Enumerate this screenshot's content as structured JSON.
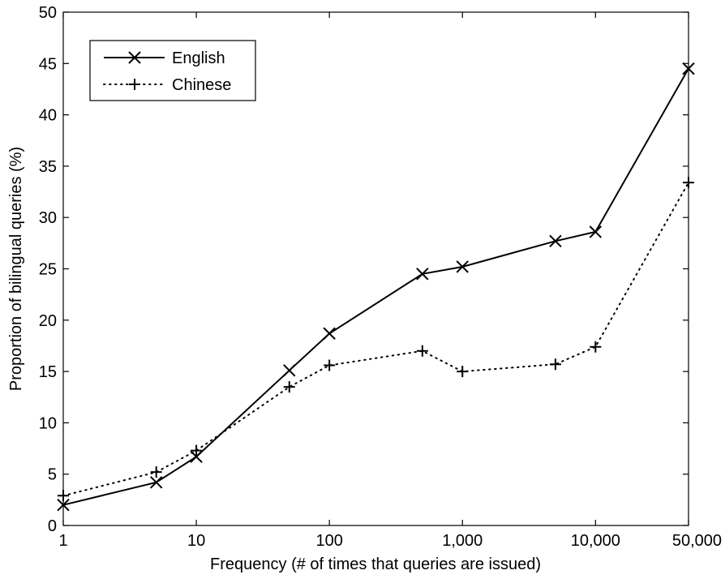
{
  "chart_data": {
    "type": "line",
    "xscale": "log",
    "xlim": [
      1,
      50000
    ],
    "ylim": [
      0,
      50
    ],
    "xticks": [
      1,
      10,
      100,
      1000,
      10000,
      50000
    ],
    "xtick_labels": [
      "1",
      "10",
      "100",
      "1,000",
      "10,000",
      "50,000"
    ],
    "yticks": [
      0,
      5,
      10,
      15,
      20,
      25,
      30,
      35,
      40,
      45,
      50
    ],
    "ytick_labels": [
      "0",
      "5",
      "10",
      "15",
      "20",
      "25",
      "30",
      "35",
      "40",
      "45",
      "50"
    ],
    "xlabel": "Frequency (# of times that queries are issued)",
    "ylabel": "Proportion of bilingual queries (%)",
    "grid": false,
    "legend": "top-left",
    "x": [
      1,
      5,
      10,
      50,
      100,
      500,
      1000,
      5000,
      10000,
      50000
    ],
    "series": [
      {
        "name": "English",
        "style": "solid",
        "marker": "x",
        "color": "#000000",
        "values": [
          2.0,
          4.2,
          6.7,
          15.1,
          18.7,
          24.5,
          25.2,
          27.7,
          28.6,
          44.5
        ]
      },
      {
        "name": "Chinese",
        "style": "dotted",
        "marker": "+",
        "color": "#000000",
        "values": [
          2.9,
          5.2,
          7.3,
          13.5,
          15.6,
          17.0,
          15.0,
          15.7,
          17.4,
          33.4
        ]
      }
    ]
  }
}
